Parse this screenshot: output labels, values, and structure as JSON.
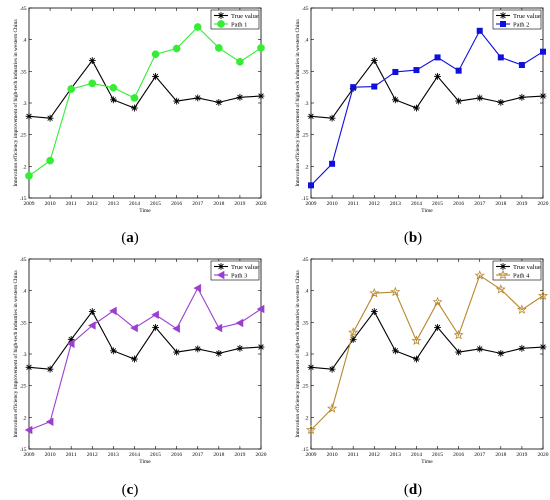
{
  "chart_data": [
    {
      "type": "line",
      "panel_label": "(a)",
      "xlabel": "Time",
      "ylabel": "Innovation efficiency improvement of high-tech industries in western China",
      "x": [
        2009,
        2010,
        2011,
        2012,
        2013,
        2014,
        2015,
        2016,
        2017,
        2018,
        2019,
        2020
      ],
      "xlim": [
        2009,
        2020
      ],
      "ylim": [
        0.15,
        0.45
      ],
      "yticks": [
        0.15,
        0.2,
        0.25,
        0.3,
        0.35,
        0.4,
        0.45
      ],
      "legend_position": "top-right",
      "series": [
        {
          "name": "True value",
          "marker": "asterisk",
          "color": "#000000",
          "values": [
            0.279,
            0.276,
            0.323,
            0.367,
            0.305,
            0.292,
            0.342,
            0.303,
            0.308,
            0.301,
            0.309,
            0.311
          ]
        },
        {
          "name": "Path 1",
          "marker": "circle",
          "color": "#33ee33",
          "values": [
            0.185,
            0.209,
            0.322,
            0.331,
            0.324,
            0.308,
            0.377,
            0.386,
            0.42,
            0.387,
            0.365,
            0.387
          ]
        }
      ]
    },
    {
      "type": "line",
      "panel_label": "(b)",
      "xlabel": "Time",
      "ylabel": "Innovation efficiency improvement of high-tech industries in western China",
      "x": [
        2009,
        2010,
        2011,
        2012,
        2013,
        2014,
        2015,
        2016,
        2017,
        2018,
        2019,
        2020
      ],
      "xlim": [
        2009,
        2020
      ],
      "ylim": [
        0.15,
        0.45
      ],
      "yticks": [
        0.15,
        0.2,
        0.25,
        0.3,
        0.35,
        0.4,
        0.45
      ],
      "legend_position": "top-right",
      "series": [
        {
          "name": "True value",
          "marker": "asterisk",
          "color": "#000000",
          "values": [
            0.279,
            0.276,
            0.323,
            0.367,
            0.305,
            0.292,
            0.342,
            0.303,
            0.308,
            0.301,
            0.309,
            0.311
          ]
        },
        {
          "name": "Path 2",
          "marker": "square",
          "color": "#1010dd",
          "values": [
            0.17,
            0.204,
            0.325,
            0.326,
            0.349,
            0.352,
            0.372,
            0.351,
            0.414,
            0.372,
            0.36,
            0.381
          ]
        }
      ]
    },
    {
      "type": "line",
      "panel_label": "(c)",
      "xlabel": "Time",
      "ylabel": "Innovation efficiency improvement of high-tech industries in western China",
      "x": [
        2009,
        2010,
        2011,
        2012,
        2013,
        2014,
        2015,
        2016,
        2017,
        2018,
        2019,
        2020
      ],
      "xlim": [
        2009,
        2020
      ],
      "ylim": [
        0.15,
        0.45
      ],
      "yticks": [
        0.15,
        0.2,
        0.25,
        0.3,
        0.35,
        0.4,
        0.45
      ],
      "legend_position": "top-right",
      "series": [
        {
          "name": "True value",
          "marker": "asterisk",
          "color": "#000000",
          "values": [
            0.279,
            0.276,
            0.323,
            0.367,
            0.305,
            0.292,
            0.342,
            0.303,
            0.308,
            0.301,
            0.309,
            0.311
          ]
        },
        {
          "name": "Path 3",
          "marker": "triangle-left",
          "color": "#9b3fcf",
          "values": [
            0.18,
            0.193,
            0.316,
            0.345,
            0.368,
            0.341,
            0.362,
            0.34,
            0.404,
            0.341,
            0.349,
            0.371
          ]
        }
      ]
    },
    {
      "type": "line",
      "panel_label": "(d)",
      "xlabel": "Time",
      "ylabel": "Innovation efficiency improvement of high-tech industries in western China",
      "x": [
        2009,
        2010,
        2011,
        2012,
        2013,
        2014,
        2015,
        2016,
        2017,
        2018,
        2019,
        2020
      ],
      "xlim": [
        2009,
        2020
      ],
      "ylim": [
        0.15,
        0.45
      ],
      "yticks": [
        0.15,
        0.2,
        0.25,
        0.3,
        0.35,
        0.4,
        0.45
      ],
      "legend_position": "top-right",
      "series": [
        {
          "name": "True value",
          "marker": "asterisk",
          "color": "#000000",
          "values": [
            0.279,
            0.276,
            0.323,
            0.367,
            0.305,
            0.292,
            0.342,
            0.303,
            0.308,
            0.301,
            0.309,
            0.311
          ]
        },
        {
          "name": "Path 4",
          "marker": "star",
          "color": "#b8872a",
          "values": [
            0.18,
            0.214,
            0.334,
            0.396,
            0.398,
            0.321,
            0.382,
            0.33,
            0.424,
            0.402,
            0.37,
            0.392
          ]
        }
      ]
    }
  ]
}
